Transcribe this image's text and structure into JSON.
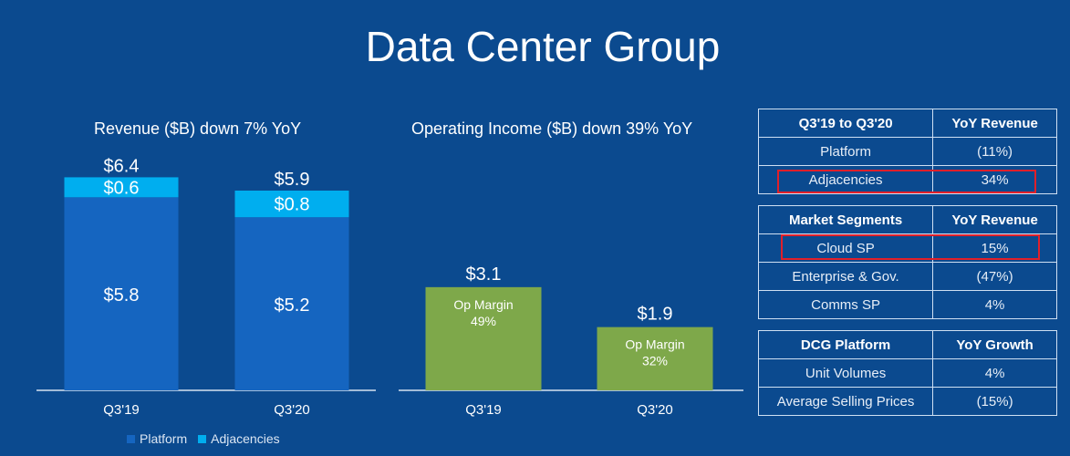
{
  "title": "Data Center Group",
  "chart_data": [
    {
      "type": "bar",
      "stacked": true,
      "title": "Revenue ($B) down 7% YoY",
      "categories": [
        "Q3'19",
        "Q3'20"
      ],
      "series": [
        {
          "name": "Platform",
          "values": [
            5.8,
            5.2
          ],
          "labels": [
            "$5.8",
            "$5.2"
          ],
          "color": "#1565c0"
        },
        {
          "name": "Adjacencies",
          "values": [
            0.6,
            0.8
          ],
          "labels": [
            "$0.6",
            "$0.8"
          ],
          "color": "#00aeef"
        }
      ],
      "totals": [
        6.4,
        5.9
      ],
      "total_labels": [
        "$6.4",
        "$5.9"
      ],
      "ylim": [
        0,
        6.5
      ],
      "legend": "bottom-left"
    },
    {
      "type": "bar",
      "title": "Operating Income ($B) down 39% YoY",
      "categories": [
        "Q3'19",
        "Q3'20"
      ],
      "values": [
        3.1,
        1.9
      ],
      "value_labels": [
        "$3.1",
        "$1.9"
      ],
      "inner_labels": [
        "Op Margin",
        "Op Margin"
      ],
      "inner_values": [
        "49%",
        "32%"
      ],
      "color": "#7ea84a",
      "ylim": [
        0,
        6.5
      ]
    }
  ],
  "tables": [
    {
      "headers": [
        "Q3'19 to Q3'20",
        "YoY Revenue"
      ],
      "rows": [
        {
          "label": "Platform",
          "value": "(11%)",
          "highlight": false
        },
        {
          "label": "Adjacencies",
          "value": "34%",
          "highlight": true
        }
      ]
    },
    {
      "headers": [
        "Market Segments",
        "YoY Revenue"
      ],
      "rows": [
        {
          "label": "Cloud SP",
          "value": "15%",
          "highlight": true
        },
        {
          "label": "Enterprise & Gov.",
          "value": "(47%)",
          "highlight": false
        },
        {
          "label": "Comms SP",
          "value": "4%",
          "highlight": false
        }
      ]
    },
    {
      "headers": [
        "DCG Platform",
        "YoY Growth"
      ],
      "rows": [
        {
          "label": "Unit Volumes",
          "value": "4%",
          "highlight": false
        },
        {
          "label": "Average Selling Prices",
          "value": "(15%)",
          "highlight": false
        }
      ]
    }
  ],
  "colors": {
    "background": "#0b4a8f",
    "platform": "#1565c0",
    "adjacencies": "#00aeef",
    "op_income": "#7ea84a",
    "highlight": "#e0202a"
  }
}
